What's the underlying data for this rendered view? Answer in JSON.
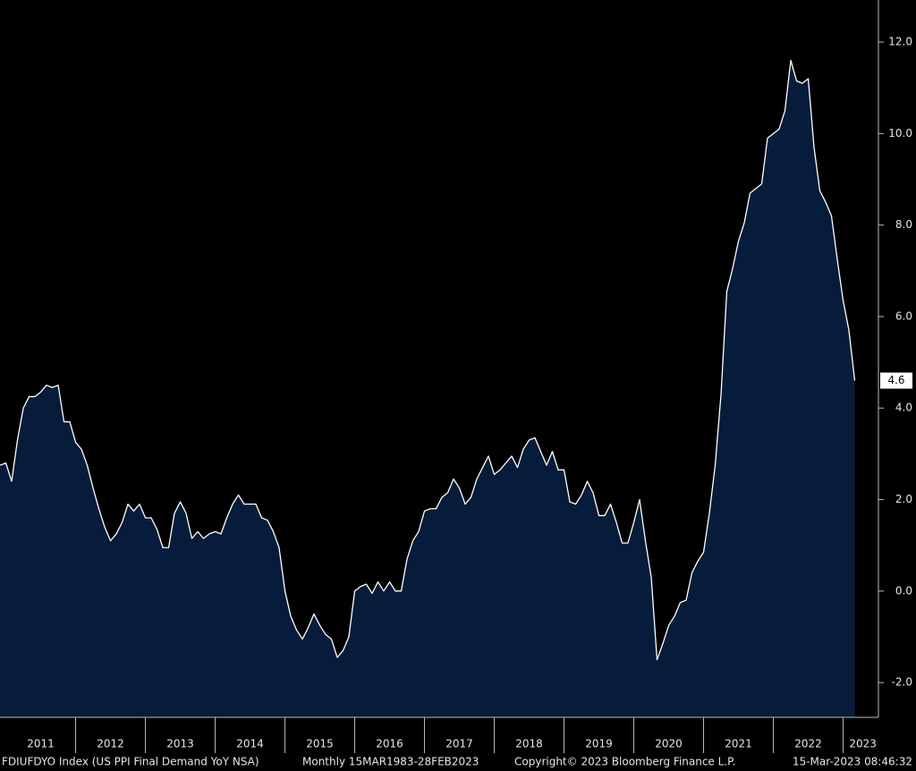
{
  "chart_data": {
    "type": "area",
    "x": [
      2010.833,
      2010.917,
      2011.0,
      2011.083,
      2011.167,
      2011.25,
      2011.333,
      2011.417,
      2011.5,
      2011.583,
      2011.667,
      2011.75,
      2011.833,
      2011.917,
      2012.0,
      2012.083,
      2012.167,
      2012.25,
      2012.333,
      2012.417,
      2012.5,
      2012.583,
      2012.667,
      2012.75,
      2012.833,
      2012.917,
      2013.0,
      2013.083,
      2013.167,
      2013.25,
      2013.333,
      2013.417,
      2013.5,
      2013.583,
      2013.667,
      2013.75,
      2013.833,
      2013.917,
      2014.0,
      2014.083,
      2014.167,
      2014.25,
      2014.333,
      2014.417,
      2014.5,
      2014.583,
      2014.667,
      2014.75,
      2014.833,
      2014.917,
      2015.0,
      2015.083,
      2015.167,
      2015.25,
      2015.333,
      2015.417,
      2015.5,
      2015.583,
      2015.667,
      2015.75,
      2015.833,
      2015.917,
      2016.0,
      2016.083,
      2016.167,
      2016.25,
      2016.333,
      2016.417,
      2016.5,
      2016.583,
      2016.667,
      2016.75,
      2016.833,
      2016.917,
      2017.0,
      2017.083,
      2017.167,
      2017.25,
      2017.333,
      2017.417,
      2017.5,
      2017.583,
      2017.667,
      2017.75,
      2017.833,
      2017.917,
      2018.0,
      2018.083,
      2018.167,
      2018.25,
      2018.333,
      2018.417,
      2018.5,
      2018.583,
      2018.667,
      2018.75,
      2018.833,
      2018.917,
      2019.0,
      2019.083,
      2019.167,
      2019.25,
      2019.333,
      2019.417,
      2019.5,
      2019.583,
      2019.667,
      2019.75,
      2019.833,
      2019.917,
      2020.0,
      2020.083,
      2020.167,
      2020.25,
      2020.333,
      2020.417,
      2020.5,
      2020.583,
      2020.667,
      2020.75,
      2020.833,
      2020.917,
      2021.0,
      2021.083,
      2021.167,
      2021.25,
      2021.333,
      2021.417,
      2021.5,
      2021.583,
      2021.667,
      2021.75,
      2021.833,
      2021.917,
      2022.0,
      2022.083,
      2022.167,
      2022.25,
      2022.333,
      2022.417,
      2022.5,
      2022.583,
      2022.667,
      2022.75,
      2022.833,
      2022.917,
      2023.0,
      2023.083
    ],
    "values": [
      2.75,
      2.8,
      2.4,
      3.3,
      4.0,
      4.25,
      4.25,
      4.35,
      4.5,
      4.45,
      4.5,
      3.7,
      3.7,
      3.25,
      3.1,
      2.75,
      2.25,
      1.8,
      1.4,
      1.1,
      1.25,
      1.5,
      1.9,
      1.75,
      1.9,
      1.6,
      1.6,
      1.35,
      0.95,
      0.95,
      1.7,
      1.95,
      1.7,
      1.15,
      1.3,
      1.15,
      1.25,
      1.3,
      1.25,
      1.6,
      1.9,
      2.1,
      1.9,
      1.9,
      1.9,
      1.6,
      1.55,
      1.3,
      0.95,
      0.0,
      -0.55,
      -0.85,
      -1.05,
      -0.8,
      -0.5,
      -0.75,
      -0.95,
      -1.05,
      -1.45,
      -1.3,
      -1.0,
      0.0,
      0.1,
      0.15,
      -0.05,
      0.2,
      0.0,
      0.2,
      0.0,
      0.0,
      0.7,
      1.1,
      1.3,
      1.75,
      1.8,
      1.8,
      2.05,
      2.15,
      2.45,
      2.25,
      1.9,
      2.05,
      2.45,
      2.7,
      2.95,
      2.55,
      2.65,
      2.8,
      2.95,
      2.7,
      3.1,
      3.3,
      3.35,
      3.05,
      2.75,
      3.05,
      2.65,
      2.65,
      1.95,
      1.9,
      2.1,
      2.4,
      2.15,
      1.65,
      1.65,
      1.9,
      1.5,
      1.05,
      1.05,
      1.5,
      2.0,
      1.1,
      0.3,
      -1.5,
      -1.15,
      -0.75,
      -0.55,
      -0.25,
      -0.2,
      0.4,
      0.65,
      0.85,
      1.7,
      2.75,
      4.3,
      6.55,
      7.05,
      7.65,
      8.05,
      8.7,
      8.8,
      8.9,
      9.9,
      10.0,
      10.1,
      10.5,
      11.6,
      11.15,
      11.1,
      11.2,
      9.7,
      8.75,
      8.5,
      8.2,
      7.25,
      6.35,
      5.7,
      4.6
    ],
    "color": "#071c3b",
    "line_color": "#ffffff",
    "xlim": [
      2010.833,
      2023.423
    ],
    "xticks": [
      {
        "value": 2011.417,
        "label": "2011"
      },
      {
        "value": 2012.417,
        "label": "2012"
      },
      {
        "value": 2013.417,
        "label": "2013"
      },
      {
        "value": 2014.417,
        "label": "2014"
      },
      {
        "value": 2015.417,
        "label": "2015"
      },
      {
        "value": 2016.417,
        "label": "2016"
      },
      {
        "value": 2017.417,
        "label": "2017"
      },
      {
        "value": 2018.417,
        "label": "2018"
      },
      {
        "value": 2019.417,
        "label": "2019"
      },
      {
        "value": 2020.417,
        "label": "2020"
      },
      {
        "value": 2021.417,
        "label": "2021"
      },
      {
        "value": 2022.417,
        "label": "2022"
      },
      {
        "value": 2023.2,
        "label": "2023"
      }
    ],
    "ylim": [
      -2.76,
      12.92
    ],
    "yticks": [
      {
        "value": -2,
        "label": "-2.0"
      },
      {
        "value": 0,
        "label": "0.0"
      },
      {
        "value": 2,
        "label": "2.0"
      },
      {
        "value": 4,
        "label": "4.0"
      },
      {
        "value": 6,
        "label": "6.0"
      },
      {
        "value": 8,
        "label": "8.0"
      },
      {
        "value": 10,
        "label": "10.0"
      },
      {
        "value": 12,
        "label": "12.0"
      }
    ]
  },
  "footer": {
    "index": "FDIUFDYO Index (US PPI Final Demand YoY NSA)",
    "period": "Monthly 15MAR1983-28FEB2023",
    "copyright": "Copyright© 2023 Bloomberg Finance L.P.",
    "timestamp": "15-Mar-2023 08:46:32"
  }
}
